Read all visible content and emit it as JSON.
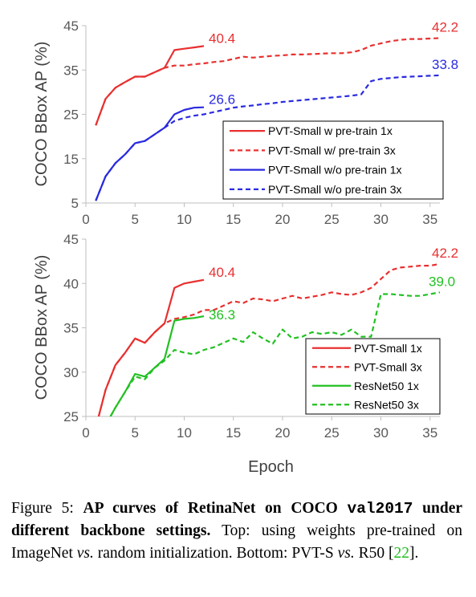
{
  "chart_data": [
    {
      "type": "line",
      "position": "top",
      "xlabel": "",
      "ylabel": "COCO BBox AP (%)",
      "xlim": [
        0,
        36
      ],
      "ylim": [
        5,
        45
      ],
      "xticks": [
        "0",
        "5",
        "10",
        "15",
        "20",
        "25",
        "30",
        "35"
      ],
      "yticks": [
        "5",
        "15",
        "25",
        "35",
        "45"
      ],
      "legend_position": "bottom-right",
      "series": [
        {
          "name": "PVT-Small w pre-train 1x",
          "color": "#e83030",
          "dash": false,
          "x": [
            1,
            2,
            3,
            4,
            5,
            6,
            7,
            8,
            9,
            10,
            11,
            12
          ],
          "y": [
            22.5,
            28.5,
            31,
            32.3,
            33.5,
            33.5,
            34.5,
            35.5,
            39.5,
            39.8,
            40.1,
            40.4
          ],
          "end_label": "40.4"
        },
        {
          "name": "PVT-Small w/ pre-train 3x",
          "color": "#e83030",
          "dash": true,
          "x": [
            1,
            2,
            3,
            4,
            5,
            6,
            7,
            8,
            9,
            10,
            11,
            12,
            13,
            14,
            15,
            16,
            17,
            18,
            19,
            20,
            21,
            22,
            23,
            24,
            25,
            26,
            27,
            28,
            29,
            30,
            31,
            32,
            33,
            34,
            35,
            36
          ],
          "y": [
            22.5,
            28.5,
            31,
            32.3,
            33.5,
            33.5,
            34.5,
            35.5,
            36,
            36,
            36.3,
            36.5,
            36.8,
            37,
            37.5,
            38,
            37.8,
            38,
            38.2,
            38.3,
            38.5,
            38.5,
            38.6,
            38.7,
            38.8,
            38.8,
            39,
            39.5,
            40.5,
            41,
            41.5,
            41.8,
            42,
            42,
            42.1,
            42.2
          ],
          "end_label": "42.2"
        },
        {
          "name": "PVT-Small w/o pre-train 1x",
          "color": "#2a2ae0",
          "dash": false,
          "x": [
            1,
            2,
            3,
            4,
            5,
            6,
            7,
            8,
            9,
            10,
            11,
            12
          ],
          "y": [
            5.5,
            11,
            14,
            16,
            18.5,
            19,
            20.5,
            22,
            25,
            26,
            26.5,
            26.6
          ],
          "end_label": "26.6"
        },
        {
          "name": "PVT-Small w/o pre-train 3x",
          "color": "#2a2ae0",
          "dash": true,
          "x": [
            1,
            2,
            3,
            4,
            5,
            6,
            7,
            8,
            9,
            10,
            11,
            12,
            13,
            14,
            15,
            16,
            17,
            18,
            19,
            20,
            21,
            22,
            23,
            24,
            25,
            26,
            27,
            28,
            29,
            30,
            31,
            32,
            33,
            34,
            35,
            36
          ],
          "y": [
            5.5,
            11,
            14,
            16,
            18.5,
            19,
            20.5,
            22,
            23.5,
            24.2,
            24.7,
            25,
            25.5,
            26,
            26.5,
            26.8,
            27,
            27.3,
            27.5,
            27.8,
            28,
            28.2,
            28.4,
            28.6,
            28.8,
            29,
            29.2,
            29.5,
            32.5,
            33,
            33.2,
            33.4,
            33.5,
            33.6,
            33.7,
            33.8
          ],
          "end_label": "33.8"
        }
      ]
    },
    {
      "type": "line",
      "position": "bottom",
      "xlabel": "Epoch",
      "ylabel": "COCO BBox AP (%)",
      "xlim": [
        0,
        36
      ],
      "ylim": [
        25,
        45
      ],
      "xticks": [
        "0",
        "5",
        "10",
        "15",
        "20",
        "25",
        "30",
        "35"
      ],
      "yticks": [
        "25",
        "30",
        "35",
        "40",
        "45"
      ],
      "legend_position": "bottom-right",
      "series": [
        {
          "name": "PVT-Small 1x",
          "color": "#e83030",
          "dash": false,
          "x": [
            1.3,
            2,
            3,
            4,
            5,
            6,
            7,
            8,
            9,
            10,
            11,
            12
          ],
          "y": [
            25,
            28,
            30.8,
            32.2,
            33.8,
            33.3,
            34.5,
            35.5,
            39.5,
            40,
            40.2,
            40.4
          ],
          "end_label": "40.4"
        },
        {
          "name": "PVT-Small 3x",
          "color": "#e83030",
          "dash": true,
          "x": [
            1.3,
            2,
            3,
            4,
            5,
            6,
            7,
            8,
            9,
            10,
            11,
            12,
            13,
            14,
            15,
            16,
            17,
            18,
            19,
            20,
            21,
            22,
            23,
            24,
            25,
            26,
            27,
            28,
            29,
            30,
            31,
            32,
            33,
            34,
            35,
            36
          ],
          "y": [
            25,
            28,
            30.8,
            32.2,
            33.8,
            33.3,
            34.5,
            35.5,
            36,
            36.2,
            36.5,
            37,
            37,
            37.5,
            38,
            37.8,
            38.3,
            38.2,
            38,
            38.3,
            38.6,
            38.3,
            38.5,
            38.7,
            39,
            38.8,
            38.7,
            39,
            39.5,
            40.5,
            41.5,
            41.8,
            41.9,
            42,
            42,
            42.2
          ],
          "end_label": "42.2"
        },
        {
          "name": "ResNet50 1x",
          "color": "#22c022",
          "dash": false,
          "x": [
            2.5,
            3,
            4,
            5,
            6,
            7,
            8,
            9,
            10,
            11,
            12
          ],
          "y": [
            25,
            26,
            27.8,
            29.8,
            29.5,
            30.5,
            31.5,
            35.8,
            36,
            36.1,
            36.3
          ],
          "end_label": "36.3"
        },
        {
          "name": "ResNet50 3x",
          "color": "#22c022",
          "dash": true,
          "x": [
            2.5,
            3,
            4,
            5,
            6,
            7,
            8,
            9,
            10,
            11,
            12,
            13,
            14,
            15,
            16,
            17,
            18,
            19,
            20,
            21,
            22,
            23,
            24,
            25,
            26,
            27,
            28,
            29,
            30,
            31,
            32,
            33,
            34,
            35,
            36
          ],
          "y": [
            25,
            26,
            27.8,
            29.5,
            29.2,
            30.5,
            31.3,
            32.5,
            32.2,
            32,
            32.5,
            32.8,
            33.3,
            33.8,
            33.4,
            34.5,
            33.8,
            33.2,
            34.8,
            33.8,
            34,
            34.5,
            34.3,
            34.5,
            34.2,
            34.8,
            34,
            34,
            38.8,
            38.8,
            38.7,
            38.6,
            38.6,
            38.8,
            39
          ],
          "end_label": "39.0"
        }
      ]
    }
  ],
  "caption": {
    "figure_label": "Figure 5:",
    "title_part1": "AP curves of RetinaNet on COCO",
    "title_code": "val2017",
    "title_part2": "under different backbone settings.",
    "body_part1": "Top: using weights pre-trained on ImageNet",
    "vs1": "vs.",
    "body_part2": "random initialization. Bottom: PVT-S",
    "vs2": "vs.",
    "body_part3": "R50 [",
    "ref": "22",
    "body_part4": "]."
  }
}
